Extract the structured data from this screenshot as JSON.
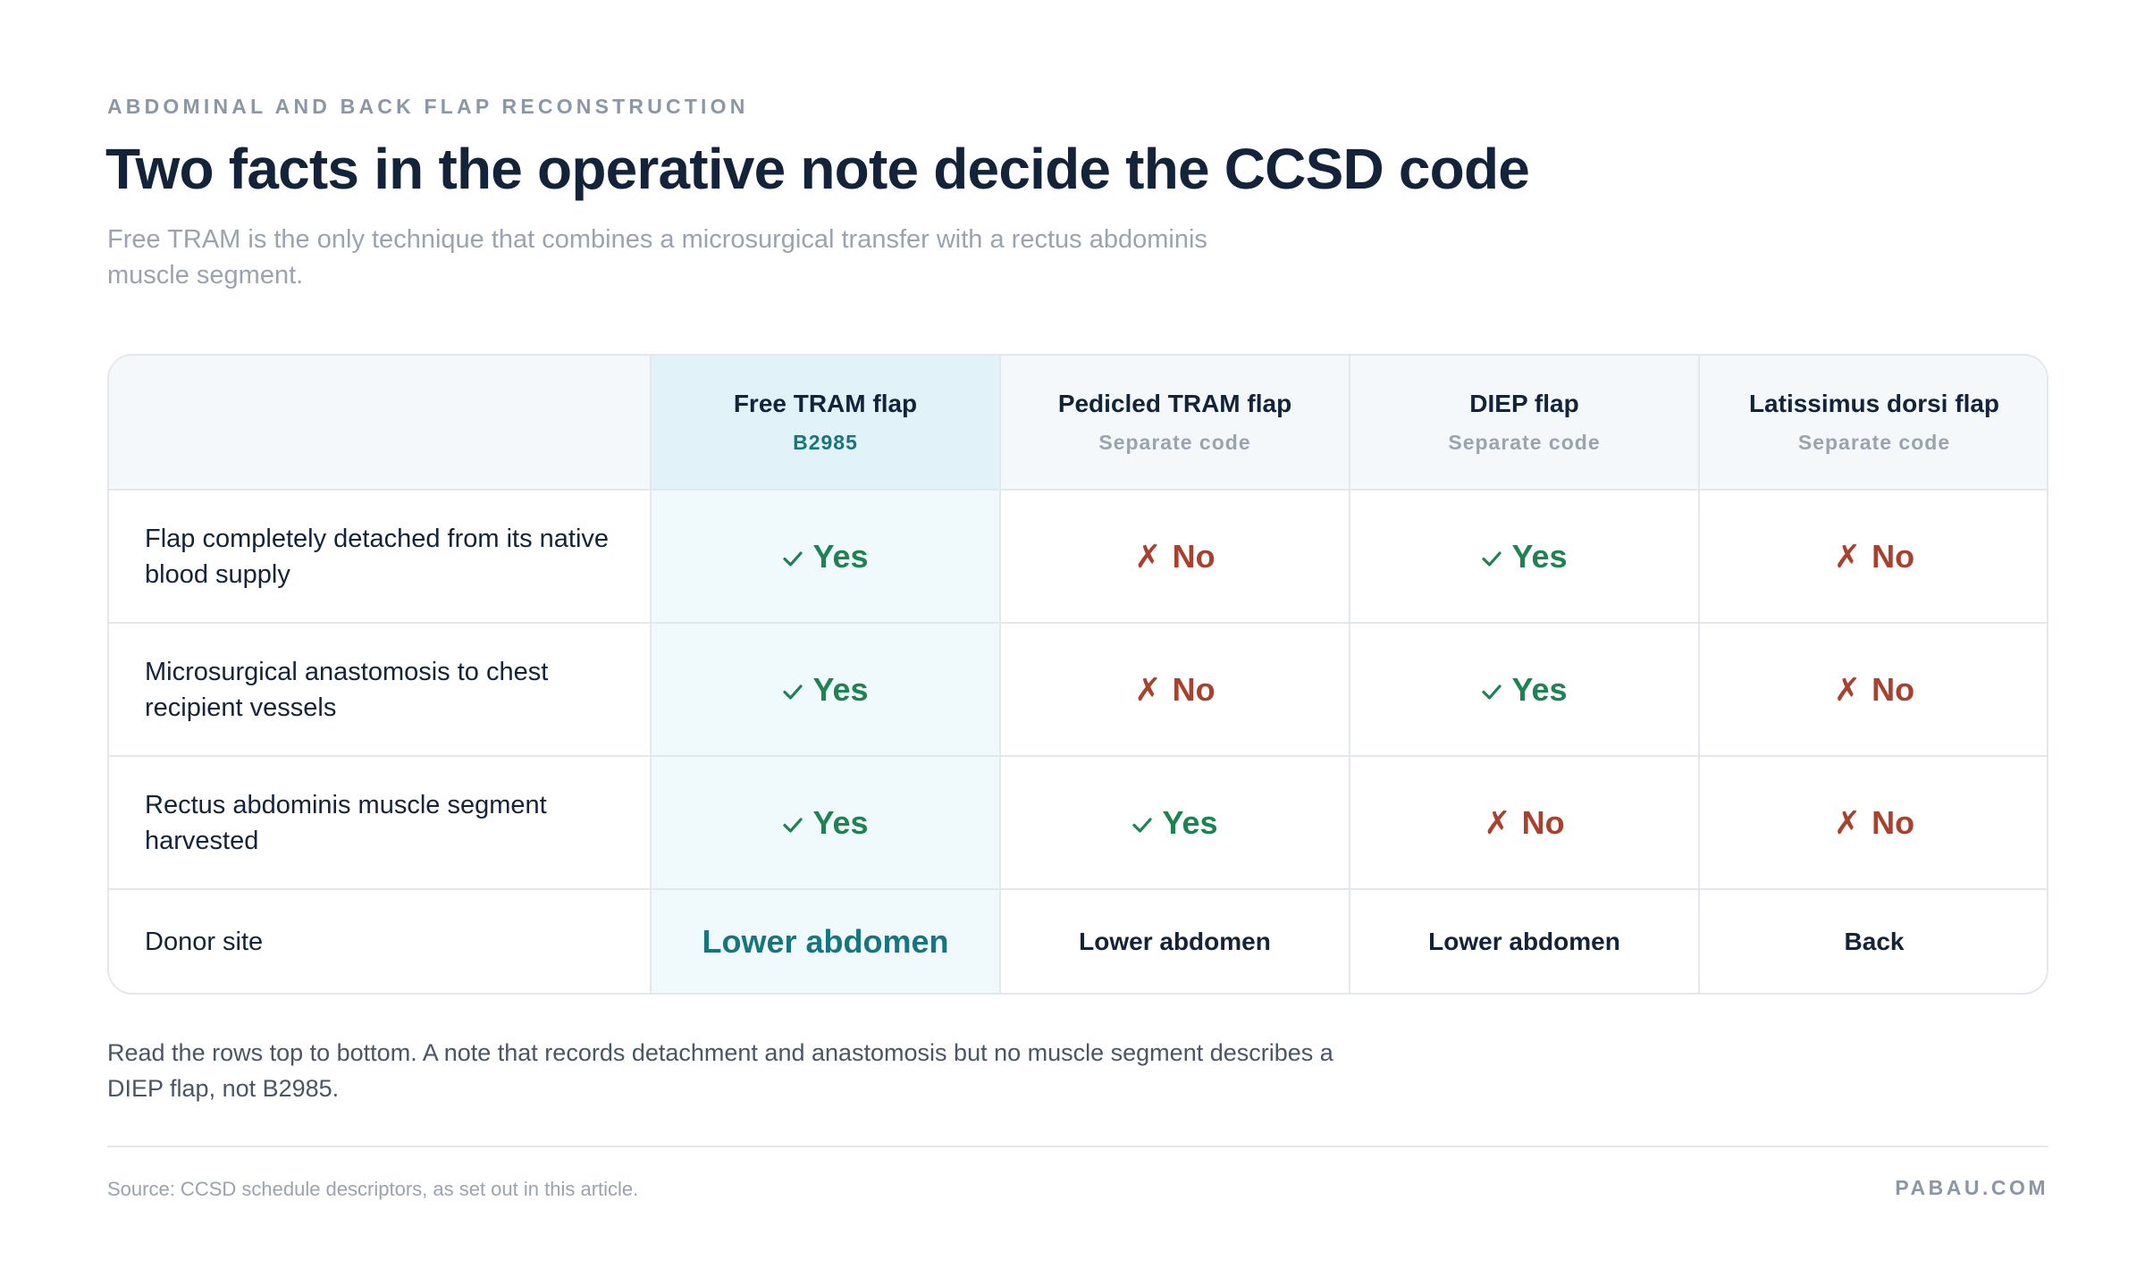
{
  "header": {
    "eyebrow": "ABDOMINAL AND BACK FLAP RECONSTRUCTION",
    "title": "Two facts in the operative note decide the CCSD code",
    "subtitle": "Free TRAM is the only technique that combines a microsurgical transfer with a rectus abdominis muscle segment."
  },
  "table": {
    "columns": [
      {
        "name": "Free TRAM flap",
        "sub": "B2985"
      },
      {
        "name": "Pedicled TRAM flap",
        "sub": "Separate code"
      },
      {
        "name": "DIEP flap",
        "sub": "Separate code"
      },
      {
        "name": "Latissimus dorsi flap",
        "sub": "Separate code"
      }
    ],
    "rows": [
      {
        "label": "Flap completely detached from its native blood supply",
        "cells": [
          "Yes",
          "No",
          "Yes",
          "No"
        ]
      },
      {
        "label": "Microsurgical anastomosis to chest recipient vessels",
        "cells": [
          "Yes",
          "No",
          "Yes",
          "No"
        ]
      },
      {
        "label": "Rectus abdominis muscle segment harvested",
        "cells": [
          "Yes",
          "Yes",
          "No",
          "No"
        ]
      },
      {
        "label": "Donor site",
        "cells": [
          "Lower abdomen",
          "Lower abdomen",
          "Lower abdomen",
          "Back"
        ]
      }
    ]
  },
  "footnote": "Read the rows top to bottom. A note that records detachment and anastomosis but no muscle segment describes a DIEP flap, not B2985.",
  "footer": {
    "source": "Source: CCSD schedule descriptors, as set out in this article.",
    "brand": "PABAU.COM"
  },
  "icons": {
    "yes": "check-icon",
    "no": "cross-icon"
  },
  "colors": {
    "yes": "#1f8252",
    "no": "#a8412e",
    "highlight_header": "#e1f3f8",
    "highlight_cell": "#f0f9fb",
    "code": "#17757f"
  }
}
